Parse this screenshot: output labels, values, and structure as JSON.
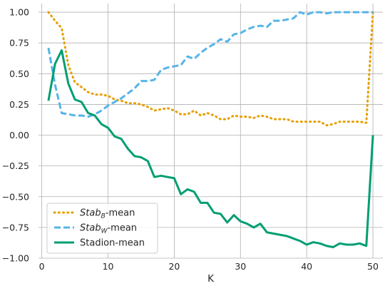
{
  "chart_data": {
    "type": "line",
    "title": "",
    "xlabel": "K",
    "ylabel": "",
    "xlim": [
      -0.5,
      51.5
    ],
    "ylim": [
      -1.0,
      1.07
    ],
    "xticks": [
      0,
      10,
      20,
      30,
      40,
      50
    ],
    "yticks": [
      -1.0,
      -0.75,
      -0.5,
      -0.25,
      0.0,
      0.25,
      0.5,
      0.75,
      1.0
    ],
    "grid": true,
    "legend_position": "lower-left",
    "x": [
      1,
      2,
      3,
      4,
      5,
      6,
      7,
      8,
      9,
      10,
      11,
      12,
      13,
      14,
      15,
      16,
      17,
      18,
      19,
      20,
      21,
      22,
      23,
      24,
      25,
      26,
      27,
      28,
      29,
      30,
      31,
      32,
      33,
      34,
      35,
      36,
      37,
      38,
      39,
      40,
      41,
      42,
      43,
      44,
      45,
      46,
      47,
      48,
      49,
      50
    ],
    "series": [
      {
        "name": "Stab_B-mean",
        "legend_main": "Stab",
        "legend_sub": "B",
        "legend_suffix": "-mean",
        "color": "#E69F00",
        "dash": "dotted",
        "values": [
          1.0,
          0.93,
          0.87,
          0.57,
          0.43,
          0.39,
          0.35,
          0.33,
          0.33,
          0.32,
          0.29,
          0.28,
          0.26,
          0.26,
          0.25,
          0.23,
          0.2,
          0.21,
          0.22,
          0.2,
          0.17,
          0.17,
          0.2,
          0.16,
          0.18,
          0.16,
          0.13,
          0.13,
          0.16,
          0.15,
          0.15,
          0.14,
          0.16,
          0.15,
          0.13,
          0.13,
          0.13,
          0.11,
          0.11,
          0.11,
          0.11,
          0.11,
          0.08,
          0.09,
          0.11,
          0.11,
          0.11,
          0.11,
          0.1,
          1.0
        ]
      },
      {
        "name": "Stab_W-mean",
        "legend_main": "Stab",
        "legend_sub": "W",
        "legend_suffix": "-mean",
        "color": "#56B4E9",
        "dash": "dashed",
        "values": [
          0.71,
          0.41,
          0.18,
          0.17,
          0.16,
          0.16,
          0.15,
          0.17,
          0.2,
          0.24,
          0.27,
          0.3,
          0.34,
          0.38,
          0.44,
          0.44,
          0.45,
          0.53,
          0.55,
          0.56,
          0.57,
          0.64,
          0.62,
          0.67,
          0.71,
          0.74,
          0.78,
          0.76,
          0.82,
          0.83,
          0.86,
          0.88,
          0.89,
          0.88,
          0.93,
          0.93,
          0.94,
          0.95,
          1.0,
          0.98,
          1.0,
          1.0,
          0.99,
          1.0,
          1.0,
          1.0,
          1.0,
          1.0,
          1.0,
          1.0
        ]
      },
      {
        "name": "Stadion-mean",
        "legend_main": "Stadion-mean",
        "legend_sub": "",
        "legend_suffix": "",
        "color": "#009E73",
        "dash": "solid",
        "values": [
          0.28,
          0.58,
          0.69,
          0.42,
          0.29,
          0.27,
          0.18,
          0.16,
          0.09,
          0.06,
          -0.01,
          -0.03,
          -0.11,
          -0.17,
          -0.18,
          -0.21,
          -0.34,
          -0.33,
          -0.34,
          -0.35,
          -0.48,
          -0.44,
          -0.46,
          -0.55,
          -0.55,
          -0.63,
          -0.64,
          -0.71,
          -0.65,
          -0.7,
          -0.72,
          -0.75,
          -0.72,
          -0.79,
          -0.8,
          -0.81,
          -0.82,
          -0.84,
          -0.86,
          -0.89,
          -0.87,
          -0.88,
          -0.9,
          -0.91,
          -0.88,
          -0.89,
          -0.89,
          -0.88,
          -0.9,
          0.0
        ]
      }
    ]
  }
}
